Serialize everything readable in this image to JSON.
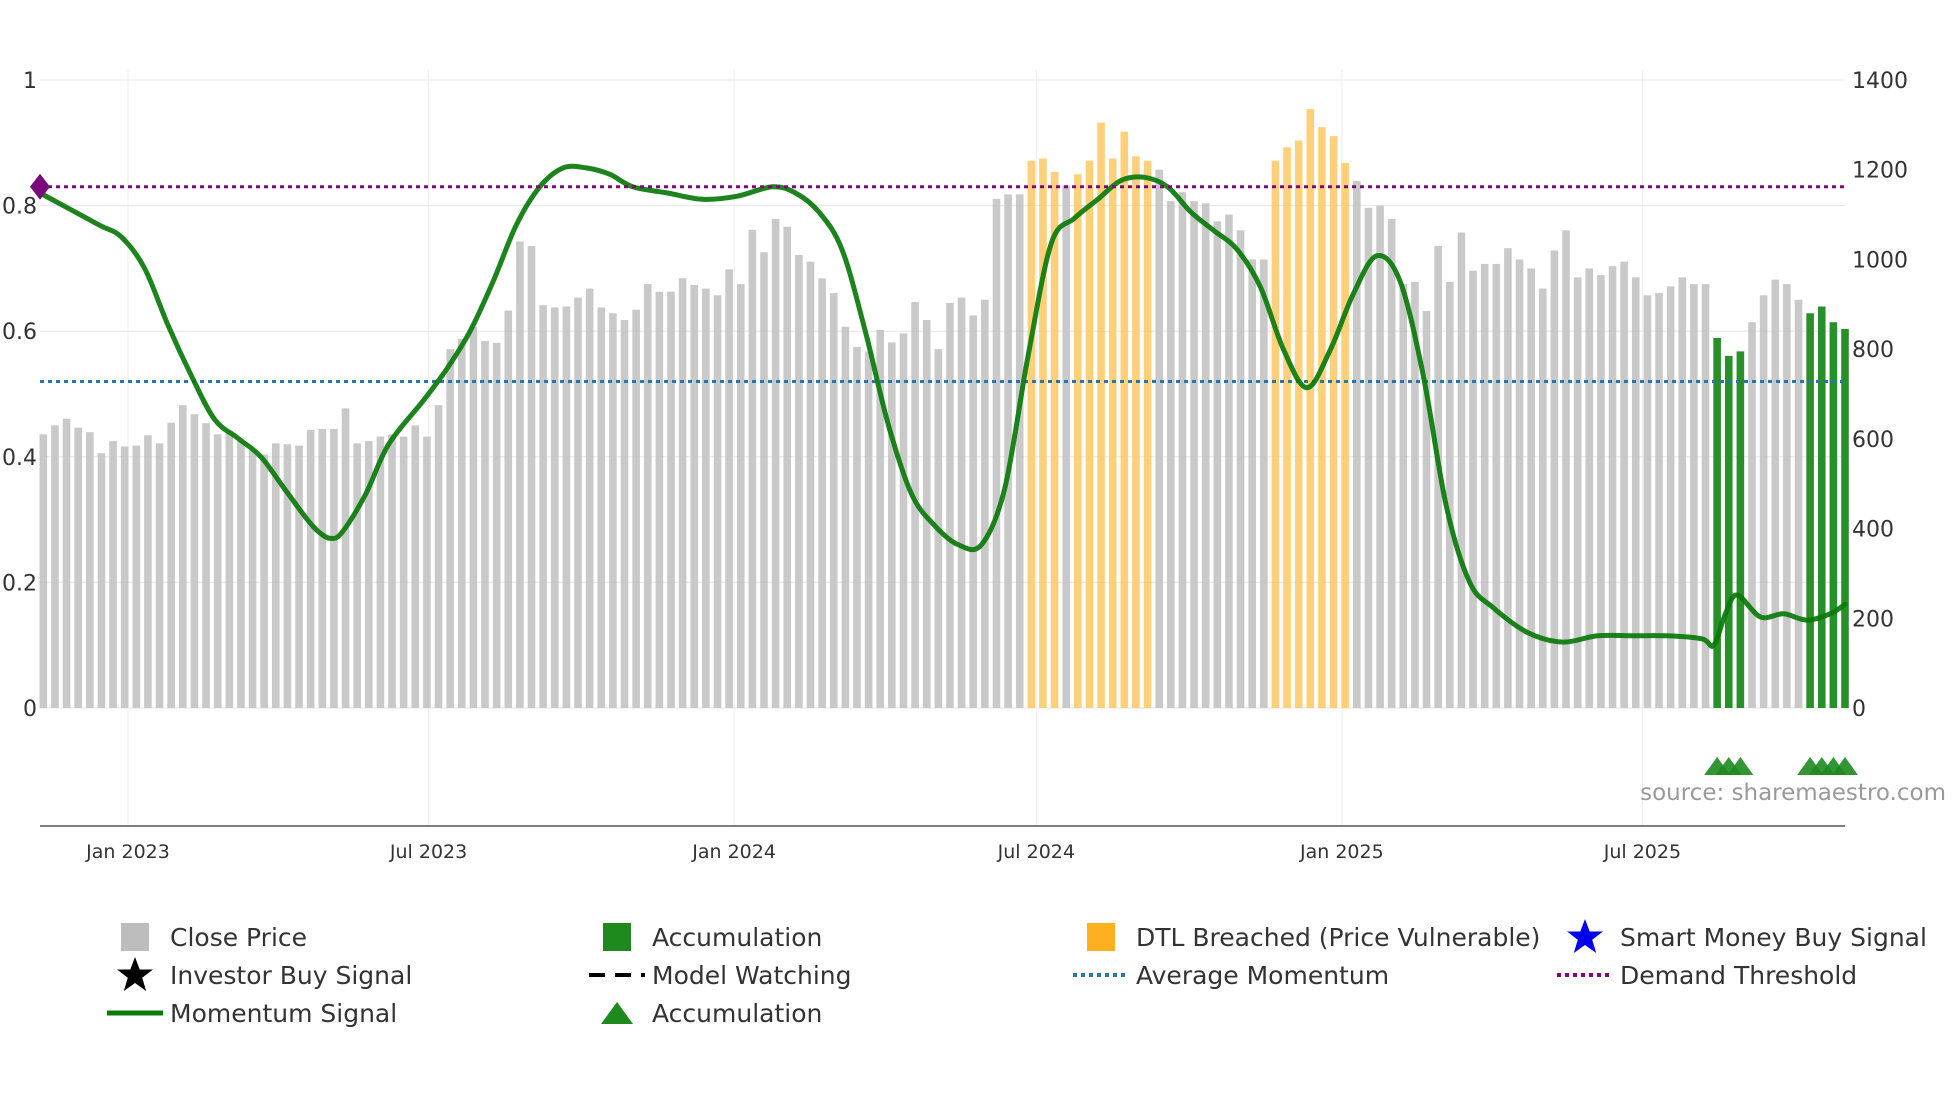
{
  "chart_data": {
    "type": "bar+line",
    "source_note": "source: sharemaestro.com",
    "left_axis": {
      "ticks": [
        "0",
        "0.2",
        "0.4",
        "0.6",
        "0.8",
        "1"
      ],
      "range": [
        0,
        1
      ]
    },
    "right_axis": {
      "ticks": [
        "0",
        "200",
        "400",
        "600",
        "800",
        "1000",
        "1200",
        "1400"
      ],
      "range": [
        0,
        1400
      ]
    },
    "x_axis": {
      "ticks": [
        "Jan 2023",
        "Jul 2023",
        "Jan 2024",
        "Jul 2024",
        "Jan 2025",
        "Jul 2025"
      ],
      "tick_dates": [
        "2023-01-01",
        "2023-07-01",
        "2024-01-01",
        "2024-07-01",
        "2025-01-01",
        "2025-07-01"
      ],
      "start": "2022-11-09",
      "end": "2025-10-31"
    },
    "close_price": [
      [
        "2022-11-11",
        610
      ],
      [
        "2022-11-18",
        630
      ],
      [
        "2022-11-25",
        645
      ],
      [
        "2022-12-02",
        625
      ],
      [
        "2022-12-09",
        615
      ],
      [
        "2022-12-16",
        568
      ],
      [
        "2022-12-23",
        595
      ],
      [
        "2022-12-30",
        583
      ],
      [
        "2023-01-06",
        585
      ],
      [
        "2023-01-13",
        608
      ],
      [
        "2023-01-20",
        590
      ],
      [
        "2023-01-27",
        636
      ],
      [
        "2023-02-03",
        675
      ],
      [
        "2023-02-10",
        655
      ],
      [
        "2023-02-17",
        635
      ],
      [
        "2023-02-24",
        610
      ],
      [
        "2023-03-03",
        618
      ],
      [
        "2023-03-10",
        595
      ],
      [
        "2023-03-17",
        575
      ],
      [
        "2023-03-24",
        565
      ],
      [
        "2023-03-31",
        590
      ],
      [
        "2023-04-07",
        588
      ],
      [
        "2023-04-14",
        585
      ],
      [
        "2023-04-21",
        620
      ],
      [
        "2023-04-28",
        622
      ],
      [
        "2023-05-05",
        622
      ],
      [
        "2023-05-12",
        668
      ],
      [
        "2023-05-19",
        590
      ],
      [
        "2023-05-26",
        595
      ],
      [
        "2023-06-02",
        605
      ],
      [
        "2023-06-09",
        610
      ],
      [
        "2023-06-16",
        605
      ],
      [
        "2023-06-23",
        630
      ],
      [
        "2023-06-30",
        605
      ],
      [
        "2023-07-07",
        675
      ],
      [
        "2023-07-14",
        800
      ],
      [
        "2023-07-21",
        823
      ],
      [
        "2023-07-28",
        850
      ],
      [
        "2023-08-04",
        818
      ],
      [
        "2023-08-11",
        814
      ],
      [
        "2023-08-18",
        886
      ],
      [
        "2023-08-25",
        1040
      ],
      [
        "2023-09-01",
        1030
      ],
      [
        "2023-09-08",
        898
      ],
      [
        "2023-09-15",
        893
      ],
      [
        "2023-09-22",
        895
      ],
      [
        "2023-09-29",
        915
      ],
      [
        "2023-10-06",
        935
      ],
      [
        "2023-10-13",
        893
      ],
      [
        "2023-10-20",
        880
      ],
      [
        "2023-10-27",
        865
      ],
      [
        "2023-11-03",
        888
      ],
      [
        "2023-11-10",
        945
      ],
      [
        "2023-11-17",
        928
      ],
      [
        "2023-11-24",
        928
      ],
      [
        "2023-12-01",
        958
      ],
      [
        "2023-12-08",
        943
      ],
      [
        "2023-12-15",
        935
      ],
      [
        "2023-12-22",
        920
      ],
      [
        "2023-12-29",
        978
      ],
      [
        "2024-01-05",
        945
      ],
      [
        "2024-01-12",
        1066
      ],
      [
        "2024-01-19",
        1016
      ],
      [
        "2024-01-26",
        1090
      ],
      [
        "2024-02-02",
        1073
      ],
      [
        "2024-02-09",
        1010
      ],
      [
        "2024-02-16",
        995
      ],
      [
        "2024-02-23",
        958
      ],
      [
        "2024-03-01",
        925
      ],
      [
        "2024-03-08",
        850
      ],
      [
        "2024-03-15",
        805
      ],
      [
        "2024-03-22",
        795
      ],
      [
        "2024-03-29",
        843
      ],
      [
        "2024-04-05",
        815
      ],
      [
        "2024-04-12",
        835
      ],
      [
        "2024-04-19",
        905
      ],
      [
        "2024-04-26",
        865
      ],
      [
        "2024-05-03",
        800
      ],
      [
        "2024-05-10",
        903
      ],
      [
        "2024-05-17",
        915
      ],
      [
        "2024-05-24",
        875
      ],
      [
        "2024-05-31",
        910
      ],
      [
        "2024-06-07",
        1135
      ],
      [
        "2024-06-14",
        1145
      ],
      [
        "2024-06-21",
        1145
      ],
      [
        "2024-06-28",
        1220
      ],
      [
        "2024-07-05",
        1225
      ],
      [
        "2024-07-12",
        1195
      ],
      [
        "2024-07-19",
        1165
      ],
      [
        "2024-07-26",
        1190
      ],
      [
        "2024-08-02",
        1220
      ],
      [
        "2024-08-09",
        1305
      ],
      [
        "2024-08-16",
        1225
      ],
      [
        "2024-08-23",
        1285
      ],
      [
        "2024-08-30",
        1230
      ],
      [
        "2024-09-06",
        1220
      ],
      [
        "2024-09-13",
        1200
      ],
      [
        "2024-09-20",
        1130
      ],
      [
        "2024-09-27",
        1150
      ],
      [
        "2024-10-04",
        1130
      ],
      [
        "2024-10-11",
        1125
      ],
      [
        "2024-10-18",
        1085
      ],
      [
        "2024-10-25",
        1100
      ],
      [
        "2024-11-01",
        1065
      ],
      [
        "2024-11-08",
        1000
      ],
      [
        "2024-11-15",
        1000
      ],
      [
        "2024-11-22",
        1220
      ],
      [
        "2024-11-29",
        1250
      ],
      [
        "2024-12-06",
        1265
      ],
      [
        "2024-12-13",
        1335
      ],
      [
        "2024-12-20",
        1295
      ],
      [
        "2024-12-27",
        1275
      ],
      [
        "2025-01-03",
        1215
      ],
      [
        "2025-01-10",
        1175
      ],
      [
        "2025-01-17",
        1115
      ],
      [
        "2025-01-24",
        1120
      ],
      [
        "2025-01-31",
        1090
      ],
      [
        "2025-02-07",
        945
      ],
      [
        "2025-02-14",
        950
      ],
      [
        "2025-02-21",
        885
      ],
      [
        "2025-02-28",
        1030
      ],
      [
        "2025-03-07",
        950
      ],
      [
        "2025-03-14",
        1060
      ],
      [
        "2025-03-21",
        975
      ],
      [
        "2025-03-28",
        990
      ],
      [
        "2025-04-04",
        990
      ],
      [
        "2025-04-11",
        1025
      ],
      [
        "2025-04-18",
        1000
      ],
      [
        "2025-04-25",
        980
      ],
      [
        "2025-05-02",
        935
      ],
      [
        "2025-05-09",
        1020
      ],
      [
        "2025-05-16",
        1065
      ],
      [
        "2025-05-23",
        960
      ],
      [
        "2025-05-30",
        980
      ],
      [
        "2025-06-06",
        965
      ],
      [
        "2025-06-13",
        985
      ],
      [
        "2025-06-20",
        995
      ],
      [
        "2025-06-27",
        960
      ],
      [
        "2025-07-04",
        920
      ],
      [
        "2025-07-11",
        925
      ],
      [
        "2025-07-18",
        940
      ],
      [
        "2025-07-25",
        960
      ],
      [
        "2025-08-01",
        945
      ],
      [
        "2025-08-08",
        945
      ],
      [
        "2025-08-15",
        825
      ],
      [
        "2025-08-22",
        785
      ],
      [
        "2025-08-29",
        795
      ],
      [
        "2025-09-05",
        860
      ],
      [
        "2025-09-12",
        920
      ],
      [
        "2025-09-19",
        955
      ],
      [
        "2025-09-26",
        945
      ],
      [
        "2025-10-03",
        910
      ],
      [
        "2025-10-10",
        880
      ],
      [
        "2025-10-17",
        895
      ],
      [
        "2025-10-24",
        860
      ],
      [
        "2025-10-31",
        845
      ]
    ],
    "dtl_breached_ranges": [
      [
        "2024-06-25",
        "2024-07-16"
      ],
      [
        "2024-07-23",
        "2024-09-10"
      ],
      [
        "2024-11-19",
        "2025-01-07"
      ]
    ],
    "accumulation_bar_ranges": [
      [
        "2025-08-12",
        "2025-09-02"
      ],
      [
        "2025-10-07",
        "2025-10-31"
      ]
    ],
    "accumulation_markers": [
      "2025-08-15",
      "2025-08-22",
      "2025-08-29",
      "2025-10-10",
      "2025-10-17",
      "2025-10-24",
      "2025-10-31"
    ],
    "momentum_signal": [
      [
        "2022-11-09",
        0.82
      ],
      [
        "2022-12-14",
        0.77
      ],
      [
        "2022-12-28",
        0.75
      ],
      [
        "2023-01-11",
        0.7
      ],
      [
        "2023-01-25",
        0.61
      ],
      [
        "2023-02-08",
        0.53
      ],
      [
        "2023-02-22",
        0.46
      ],
      [
        "2023-03-08",
        0.43
      ],
      [
        "2023-03-22",
        0.4
      ],
      [
        "2023-04-05",
        0.35
      ],
      [
        "2023-04-19",
        0.3
      ],
      [
        "2023-04-26",
        0.28
      ],
      [
        "2023-05-03",
        0.27
      ],
      [
        "2023-05-10",
        0.28
      ],
      [
        "2023-05-24",
        0.34
      ],
      [
        "2023-06-07",
        0.42
      ],
      [
        "2023-06-28",
        0.49
      ],
      [
        "2023-07-12",
        0.54
      ],
      [
        "2023-07-26",
        0.6
      ],
      [
        "2023-08-09",
        0.68
      ],
      [
        "2023-08-23",
        0.77
      ],
      [
        "2023-09-06",
        0.83
      ],
      [
        "2023-09-20",
        0.86
      ],
      [
        "2023-10-04",
        0.86
      ],
      [
        "2023-10-18",
        0.85
      ],
      [
        "2023-11-01",
        0.83
      ],
      [
        "2023-11-22",
        0.82
      ],
      [
        "2023-12-13",
        0.81
      ],
      [
        "2024-01-03",
        0.815
      ],
      [
        "2024-01-24",
        0.83
      ],
      [
        "2024-02-07",
        0.82
      ],
      [
        "2024-02-21",
        0.79
      ],
      [
        "2024-03-06",
        0.73
      ],
      [
        "2024-03-20",
        0.6
      ],
      [
        "2024-04-03",
        0.45
      ],
      [
        "2024-04-17",
        0.34
      ],
      [
        "2024-05-01",
        0.29
      ],
      [
        "2024-05-15",
        0.26
      ],
      [
        "2024-05-29",
        0.26
      ],
      [
        "2024-06-12",
        0.35
      ],
      [
        "2024-06-26",
        0.56
      ],
      [
        "2024-07-10",
        0.74
      ],
      [
        "2024-07-24",
        0.78
      ],
      [
        "2024-08-07",
        0.81
      ],
      [
        "2024-08-21",
        0.84
      ],
      [
        "2024-09-04",
        0.845
      ],
      [
        "2024-09-18",
        0.83
      ],
      [
        "2024-10-02",
        0.79
      ],
      [
        "2024-10-16",
        0.76
      ],
      [
        "2024-10-30",
        0.73
      ],
      [
        "2024-11-13",
        0.67
      ],
      [
        "2024-11-27",
        0.57
      ],
      [
        "2024-12-11",
        0.51
      ],
      [
        "2024-12-25",
        0.57
      ],
      [
        "2025-01-08",
        0.66
      ],
      [
        "2025-01-22",
        0.72
      ],
      [
        "2025-02-05",
        0.68
      ],
      [
        "2025-02-19",
        0.53
      ],
      [
        "2025-03-05",
        0.32
      ],
      [
        "2025-03-19",
        0.2
      ],
      [
        "2025-04-02",
        0.16
      ],
      [
        "2025-04-23",
        0.12
      ],
      [
        "2025-05-14",
        0.105
      ],
      [
        "2025-06-04",
        0.115
      ],
      [
        "2025-06-25",
        0.115
      ],
      [
        "2025-07-16",
        0.115
      ],
      [
        "2025-08-06",
        0.11
      ],
      [
        "2025-08-13",
        0.1
      ],
      [
        "2025-08-20",
        0.15
      ],
      [
        "2025-08-27",
        0.18
      ],
      [
        "2025-09-10",
        0.145
      ],
      [
        "2025-09-24",
        0.15
      ],
      [
        "2025-10-08",
        0.14
      ],
      [
        "2025-10-22",
        0.15
      ],
      [
        "2025-10-31",
        0.165
      ]
    ],
    "average_momentum": 0.52,
    "demand_threshold": 0.83,
    "colors": {
      "close_price": "#c0c0c0",
      "accumulation": "#1e8a1e",
      "dtl": "#ffc04d",
      "momentum": "#0a7a0a",
      "average": "#2e73a8",
      "demand": "#7a0a7a",
      "star_blue": "#0000ee"
    },
    "legend": [
      {
        "label": "Close Price",
        "kind": "gray-square"
      },
      {
        "label": "Accumulation",
        "kind": "green-square"
      },
      {
        "label": "DTL Breached (Price Vulnerable)",
        "kind": "orange-square"
      },
      {
        "label": "Smart Money Buy Signal",
        "kind": "blue-star"
      },
      {
        "label": "Investor Buy Signal",
        "kind": "black-star"
      },
      {
        "label": "Model Watching",
        "kind": "black-dash"
      },
      {
        "label": "Average Momentum",
        "kind": "blue-dots"
      },
      {
        "label": "Demand Threshold",
        "kind": "purple-dots"
      },
      {
        "label": "Momentum Signal",
        "kind": "green-line"
      },
      {
        "label": "Accumulation",
        "kind": "green-triangle"
      }
    ]
  }
}
